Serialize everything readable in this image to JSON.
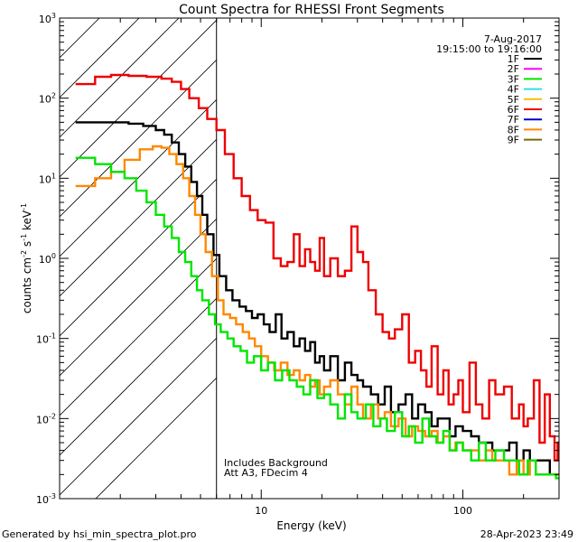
{
  "chart_data": {
    "type": "line",
    "title": "Count Spectra for RHESSI Front Segments",
    "xlabel": "Energy (keV)",
    "ylabel": "counts cm-2 s-1 keV-1",
    "xscale": "log",
    "yscale": "log",
    "xlim": [
      1,
      300
    ],
    "ylim": [
      0.001,
      1000
    ],
    "x_ticks": [
      {
        "value": 10,
        "label": "10"
      },
      {
        "value": 100,
        "label": "100"
      }
    ],
    "y_ticks": [
      {
        "value": 0.001,
        "base": "10",
        "exp": "-3"
      },
      {
        "value": 0.01,
        "base": "10",
        "exp": "-2"
      },
      {
        "value": 0.1,
        "base": "10",
        "exp": "-1"
      },
      {
        "value": 1,
        "base": "10",
        "exp": "0"
      },
      {
        "value": 10,
        "base": "10",
        "exp": "1"
      },
      {
        "value": 100,
        "base": "10",
        "exp": "2"
      },
      {
        "value": 1000,
        "base": "10",
        "exp": "3"
      }
    ],
    "shaded_region": {
      "x_range": [
        1,
        6
      ],
      "style": "hatched"
    },
    "date": "7-Aug-2017",
    "time_range": "19:15:00 to 19:16:00",
    "legend_position": "top-right",
    "legend": [
      {
        "label": "1F",
        "color": "#000000"
      },
      {
        "label": "2F",
        "color": "#ff00ff"
      },
      {
        "label": "3F",
        "color": "#00e600"
      },
      {
        "label": "4F",
        "color": "#33ddee"
      },
      {
        "label": "5F",
        "color": "#f5c000"
      },
      {
        "label": "6F",
        "color": "#ee0000"
      },
      {
        "label": "7F",
        "color": "#0000cc"
      },
      {
        "label": "8F",
        "color": "#ff8800"
      },
      {
        "label": "9F",
        "color": "#7a6a00"
      }
    ],
    "annotations": [
      "Includes Background",
      "Att A3, FDecim 4"
    ],
    "series": [
      {
        "name": "6F",
        "color": "#ee0000",
        "x": [
          1.2,
          1.5,
          1.8,
          2.2,
          2.7,
          3.2,
          3.6,
          4.0,
          4.4,
          4.9,
          5.4,
          6.0,
          6.6,
          7.3,
          8.0,
          8.8,
          9.6,
          10.5,
          11.5,
          12.5,
          13.5,
          14.5,
          15.5,
          16.5,
          17.5,
          18.5,
          19.5,
          20.5,
          22,
          24,
          26,
          28,
          30,
          32,
          34,
          37,
          40,
          43,
          46,
          50,
          54,
          58,
          62,
          66,
          70,
          75,
          80,
          85,
          90,
          95,
          100,
          108,
          116,
          125,
          135,
          145,
          160,
          175,
          190,
          200,
          210,
          225,
          240,
          255,
          270,
          285,
          295
        ],
        "y": [
          150,
          185,
          195,
          190,
          185,
          175,
          160,
          130,
          100,
          75,
          55,
          40,
          20,
          10,
          6,
          4,
          3,
          2.8,
          1,
          0.8,
          0.9,
          2,
          0.8,
          1.3,
          0.9,
          0.7,
          1.8,
          0.6,
          1,
          0.6,
          0.7,
          2.5,
          1.2,
          0.9,
          0.4,
          0.2,
          0.12,
          0.1,
          0.13,
          0.2,
          0.05,
          0.07,
          0.04,
          0.025,
          0.08,
          0.02,
          0.04,
          0.015,
          0.02,
          0.03,
          0.012,
          0.05,
          0.015,
          0.01,
          0.03,
          0.02,
          0.025,
          0.01,
          0.015,
          0.008,
          0.01,
          0.03,
          0.005,
          0.02,
          0.006,
          0.003,
          0.005
        ]
      },
      {
        "name": "1F",
        "color": "#000000",
        "x": [
          1.2,
          1.5,
          1.8,
          2.2,
          2.6,
          3.0,
          3.3,
          3.6,
          3.9,
          4.2,
          4.5,
          4.8,
          5.1,
          5.4,
          5.8,
          6.2,
          6.7,
          7.2,
          7.8,
          8.4,
          9.0,
          9.6,
          10.3,
          11.0,
          11.8,
          12.6,
          13.5,
          14.5,
          15.5,
          16.5,
          17.5,
          18.5,
          19.5,
          20.5,
          22,
          24,
          26,
          28,
          30,
          32,
          35,
          38,
          41,
          44,
          48,
          52,
          56,
          60,
          65,
          70,
          75,
          80,
          86,
          92,
          100,
          110,
          120,
          130,
          140,
          155,
          170,
          185,
          200,
          215,
          230,
          250,
          270,
          290
        ],
        "y": [
          50,
          50,
          50,
          48,
          45,
          40,
          35,
          28,
          20,
          14,
          9,
          6,
          3.5,
          2,
          1.1,
          0.6,
          0.4,
          0.3,
          0.25,
          0.22,
          0.18,
          0.2,
          0.15,
          0.12,
          0.2,
          0.1,
          0.12,
          0.08,
          0.1,
          0.07,
          0.09,
          0.05,
          0.06,
          0.04,
          0.06,
          0.03,
          0.05,
          0.035,
          0.03,
          0.025,
          0.02,
          0.015,
          0.025,
          0.012,
          0.015,
          0.02,
          0.01,
          0.015,
          0.012,
          0.008,
          0.01,
          0.01,
          0.006,
          0.008,
          0.007,
          0.006,
          0.005,
          0.005,
          0.004,
          0.004,
          0.005,
          0.003,
          0.004,
          0.003,
          0.003,
          0.003,
          0.002,
          0.002
        ]
      },
      {
        "name": "8F",
        "color": "#ff8800",
        "x": [
          1.2,
          1.5,
          1.8,
          2.1,
          2.5,
          2.9,
          3.2,
          3.5,
          3.8,
          4.1,
          4.4,
          4.7,
          5.0,
          5.3,
          5.7,
          6.1,
          6.5,
          7.0,
          7.5,
          8.1,
          8.7,
          9.3,
          10.0,
          10.8,
          11.6,
          12.5,
          13.5,
          14.5,
          15.5,
          16.5,
          17.5,
          18.5,
          19.5,
          20.5,
          22,
          24,
          26,
          28,
          30,
          32,
          35,
          38,
          41,
          44,
          48,
          52,
          56,
          60,
          65,
          70,
          75,
          80,
          86,
          92,
          100,
          110,
          120,
          130,
          140,
          155,
          170,
          185,
          200,
          215,
          230,
          250,
          270,
          290
        ],
        "y": [
          8,
          10,
          12,
          17,
          23,
          25,
          24,
          20,
          15,
          10,
          6,
          3.5,
          2,
          1.2,
          0.6,
          0.3,
          0.2,
          0.18,
          0.15,
          0.12,
          0.1,
          0.08,
          0.06,
          0.05,
          0.04,
          0.05,
          0.035,
          0.04,
          0.03,
          0.035,
          0.025,
          0.03,
          0.02,
          0.025,
          0.03,
          0.02,
          0.015,
          0.025,
          0.015,
          0.01,
          0.015,
          0.01,
          0.012,
          0.008,
          0.01,
          0.006,
          0.008,
          0.007,
          0.006,
          0.007,
          0.005,
          0.006,
          0.004,
          0.005,
          0.004,
          0.004,
          0.003,
          0.004,
          0.003,
          0.003,
          0.002,
          0.003,
          0.002,
          0.003,
          0.002,
          0.002,
          0.002,
          0.002
        ]
      },
      {
        "name": "3F",
        "color": "#00e600",
        "x": [
          1.2,
          1.5,
          1.8,
          2.1,
          2.4,
          2.7,
          3.0,
          3.3,
          3.6,
          3.9,
          4.2,
          4.5,
          4.8,
          5.1,
          5.5,
          5.9,
          6.3,
          6.8,
          7.3,
          7.9,
          8.5,
          9.2,
          10.0,
          10.8,
          11.7,
          12.7,
          13.8,
          15.0,
          16.2,
          17.5,
          19.0,
          20.5,
          22,
          24,
          26,
          28,
          30,
          33,
          36,
          39,
          42,
          46,
          50,
          54,
          58,
          63,
          68,
          74,
          80,
          86,
          93,
          100,
          110,
          120,
          130,
          145,
          160,
          175,
          190,
          210,
          230,
          250,
          270,
          290
        ],
        "y": [
          18,
          15,
          12,
          10,
          7,
          5,
          3.5,
          2.5,
          1.8,
          1.2,
          0.9,
          0.6,
          0.4,
          0.3,
          0.2,
          0.15,
          0.12,
          0.1,
          0.08,
          0.07,
          0.05,
          0.06,
          0.04,
          0.05,
          0.03,
          0.04,
          0.03,
          0.025,
          0.02,
          0.03,
          0.018,
          0.02,
          0.015,
          0.01,
          0.02,
          0.012,
          0.01,
          0.015,
          0.008,
          0.01,
          0.007,
          0.012,
          0.006,
          0.008,
          0.005,
          0.01,
          0.006,
          0.005,
          0.007,
          0.004,
          0.005,
          0.004,
          0.003,
          0.005,
          0.003,
          0.004,
          0.003,
          0.003,
          0.002,
          0.003,
          0.002,
          0.002,
          0.002,
          0.0018
        ]
      }
    ]
  },
  "footer": {
    "left": "Generated by hsi_min_spectra_plot.pro",
    "right": "28-Apr-2023 23:49"
  }
}
